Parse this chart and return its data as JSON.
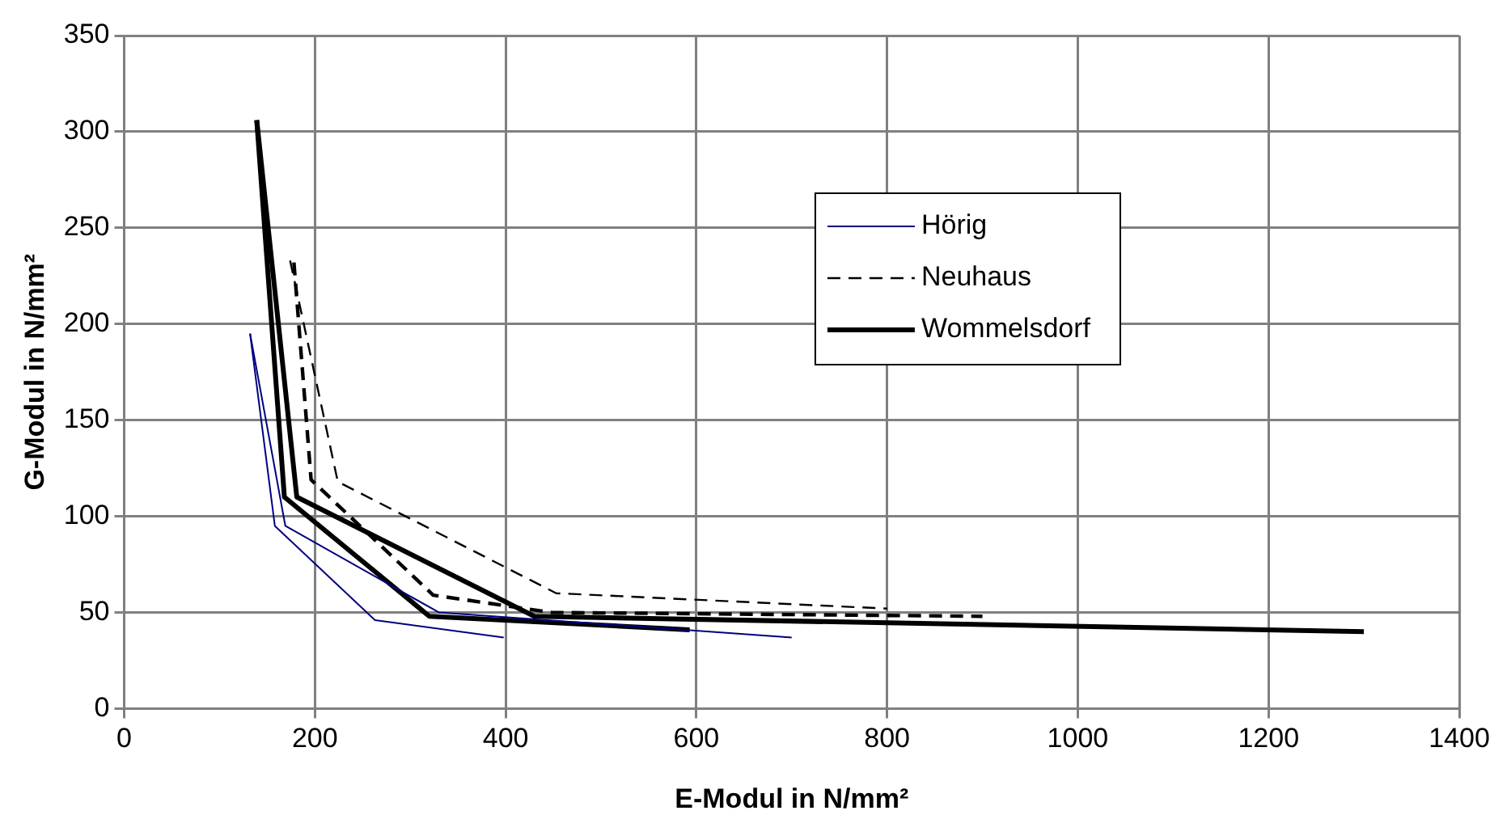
{
  "chart_data": {
    "type": "line",
    "xlabel": "E-Modul in N/mm²",
    "ylabel": "G-Modul in N/mm²",
    "xlim": [
      0,
      1400
    ],
    "xticks": [
      0,
      200,
      400,
      600,
      800,
      1000,
      1200,
      1400
    ],
    "ylim": [
      0,
      350
    ],
    "yticks": [
      0,
      50,
      100,
      150,
      200,
      250,
      300,
      350
    ],
    "grid": true,
    "legend": "top right",
    "marker": "none",
    "series": [
      {
        "name": "Hörig",
        "color": "#000080",
        "line_style": "solid",
        "x": [
          132,
          158,
          263,
          398
        ],
        "values": [
          195,
          95,
          46,
          37
        ]
      },
      {
        "color": "#000080",
        "line_style": "solid",
        "x": [
          132,
          169,
          330,
          700
        ],
        "values": [
          195,
          95,
          50,
          37
        ]
      },
      {
        "name": "Neuhaus",
        "color": "#000000",
        "line_style": "dashed",
        "x": [
          174,
          224,
          453,
          800
        ],
        "values": [
          233,
          118,
          60,
          52
        ]
      },
      {
        "color": "#000000",
        "line_style": "dashed",
        "x": [
          178,
          196,
          324,
          448,
          900
        ],
        "values": [
          232,
          119,
          59,
          50,
          48
        ]
      },
      {
        "name": "Wommelsdorf",
        "color": "#000000",
        "line_style": "solid",
        "x": [
          139,
          168,
          320,
          593
        ],
        "values": [
          306,
          110,
          48,
          41
        ]
      },
      {
        "color": "#000000",
        "line_style": "solid",
        "x": [
          139,
          181,
          430,
          1300
        ],
        "values": [
          306,
          110,
          48,
          40
        ]
      }
    ]
  }
}
